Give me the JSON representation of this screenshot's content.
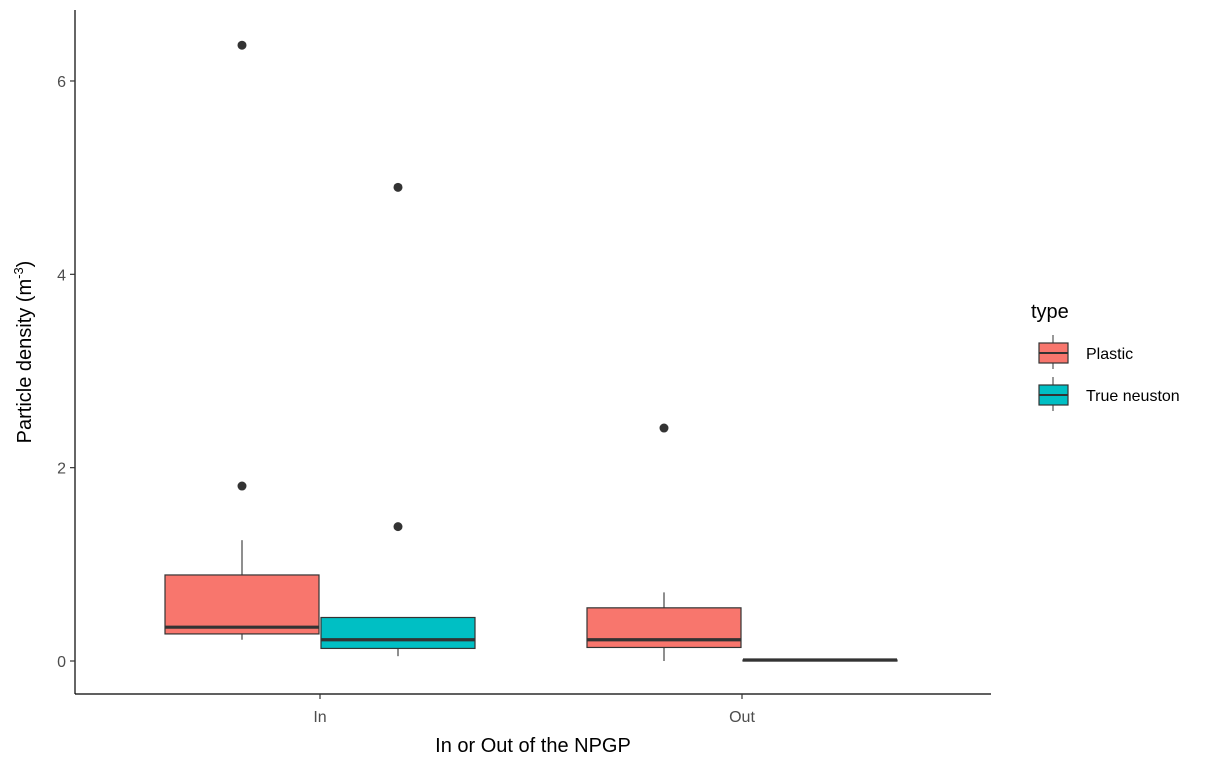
{
  "chart_data": {
    "type": "boxplot",
    "title": "",
    "xlabel": "In or Out of the NPGP",
    "ylabel_text": "Particle density (m",
    "ylabel_sup": "-3",
    "ylabel_close": ")",
    "ylim": [
      -0.35,
      6.65
    ],
    "yticks": [
      0,
      2,
      4,
      6
    ],
    "categories": [
      "In",
      "Out"
    ],
    "grid": false,
    "legend": {
      "title": "type",
      "position": "right",
      "entries": [
        "Plastic",
        "True neuston"
      ]
    },
    "series": [
      {
        "name": "Plastic",
        "color": "#F8766D",
        "boxes": [
          {
            "category": "In",
            "whisker_low": 0.22,
            "q1": 0.28,
            "median": 0.35,
            "q3": 0.89,
            "whisker_high": 1.25,
            "outliers": [
              1.81,
              6.37
            ]
          },
          {
            "category": "Out",
            "whisker_low": 0.0,
            "q1": 0.14,
            "median": 0.22,
            "q3": 0.55,
            "whisker_high": 0.71,
            "outliers": [
              2.41
            ]
          }
        ]
      },
      {
        "name": "True neuston",
        "color": "#00BFC4",
        "boxes": [
          {
            "category": "In",
            "whisker_low": 0.05,
            "q1": 0.13,
            "median": 0.22,
            "q3": 0.45,
            "whisker_high": 0.45,
            "outliers": [
              1.39,
              4.9
            ]
          },
          {
            "category": "Out",
            "whisker_low": 0.0,
            "q1": 0.0,
            "median": 0.01,
            "q3": 0.01,
            "whisker_high": 0.01,
            "outliers": []
          }
        ]
      }
    ]
  }
}
